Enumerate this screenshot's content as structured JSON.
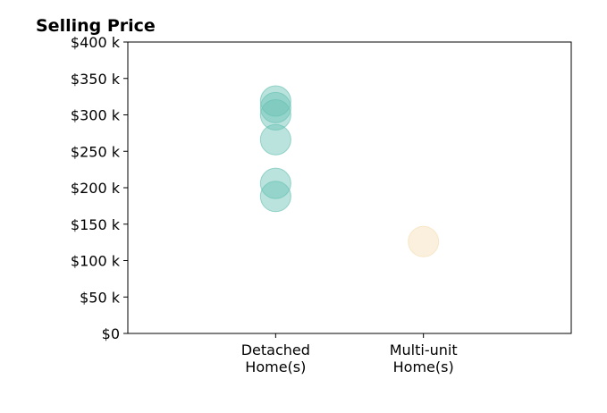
{
  "chart_data": {
    "type": "scatter",
    "title": "Selling Price",
    "xlabel": "",
    "ylabel": "",
    "categories": [
      [
        "Detached",
        "Home(s)"
      ],
      [
        "Multi-unit",
        "Home(s)"
      ]
    ],
    "ylim": [
      0,
      400000
    ],
    "xlim": [
      -1,
      2
    ],
    "y_ticks": [
      0,
      50000,
      100000,
      150000,
      200000,
      250000,
      300000,
      350000,
      400000
    ],
    "y_tick_labels": [
      "$0",
      "$50 k",
      "$100 k",
      "$150 k",
      "$200 k",
      "$250 k",
      "$300 k",
      "$350 k",
      "$400 k"
    ],
    "grid": false,
    "legend": "none",
    "series": [
      {
        "category_index": 0,
        "color": "#69c2b4",
        "values": [
          319000,
          310000,
          300000,
          266000,
          206000,
          188000
        ]
      },
      {
        "category_index": 1,
        "color": "#f5deb3",
        "values": [
          126000
        ]
      }
    ]
  }
}
